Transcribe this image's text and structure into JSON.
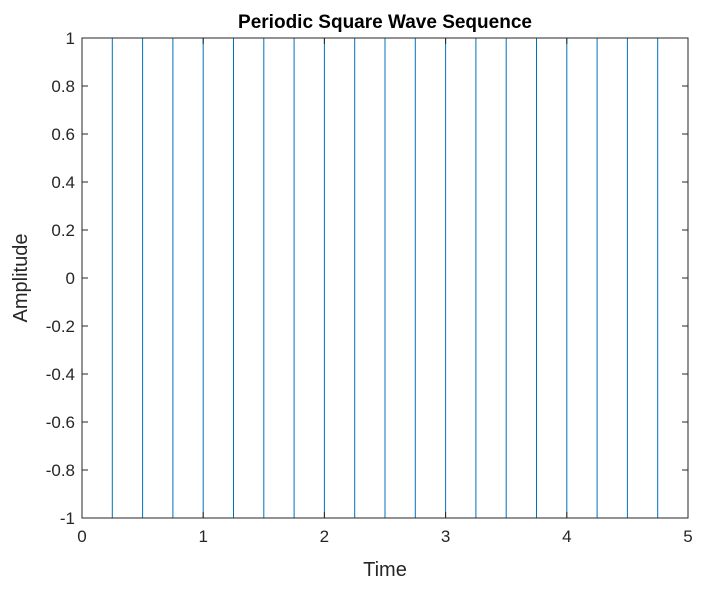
{
  "chart_data": {
    "type": "line",
    "title": "Periodic Square Wave Sequence",
    "xlabel": "Time",
    "ylabel": "Amplitude",
    "xlim": [
      0,
      5
    ],
    "ylim": [
      -1,
      1
    ],
    "xticks": [
      0,
      1,
      2,
      3,
      4,
      5
    ],
    "xtick_labels": [
      "0",
      "1",
      "2",
      "3",
      "4",
      "5"
    ],
    "yticks": [
      -1,
      -0.8,
      -0.6,
      -0.4,
      -0.2,
      0,
      0.2,
      0.4,
      0.6,
      0.8,
      1
    ],
    "ytick_labels": [
      "-1",
      "-0.8",
      "-0.6",
      "-0.4",
      "-0.2",
      "0",
      "0.2",
      "0.4",
      "0.6",
      "0.8",
      "1"
    ],
    "grid": false,
    "box": true,
    "series": [
      {
        "color": "#0072BD",
        "period": 0.5,
        "duty_cycle": 0.5,
        "amplitude_high": 1,
        "amplitude_low": -1,
        "x_start": 0,
        "x_end": 5,
        "transitions": [
          0.25,
          0.5,
          0.75,
          1,
          1.25,
          1.5,
          1.75,
          2,
          2.25,
          2.5,
          2.75,
          3,
          3.25,
          3.5,
          3.75,
          4,
          4.25,
          4.5,
          4.75,
          5
        ],
        "levels": [
          1,
          -1,
          1,
          -1,
          1,
          -1,
          1,
          -1,
          1,
          -1,
          1,
          -1,
          1,
          -1,
          1,
          -1,
          1,
          -1,
          1,
          -1
        ]
      }
    ]
  }
}
